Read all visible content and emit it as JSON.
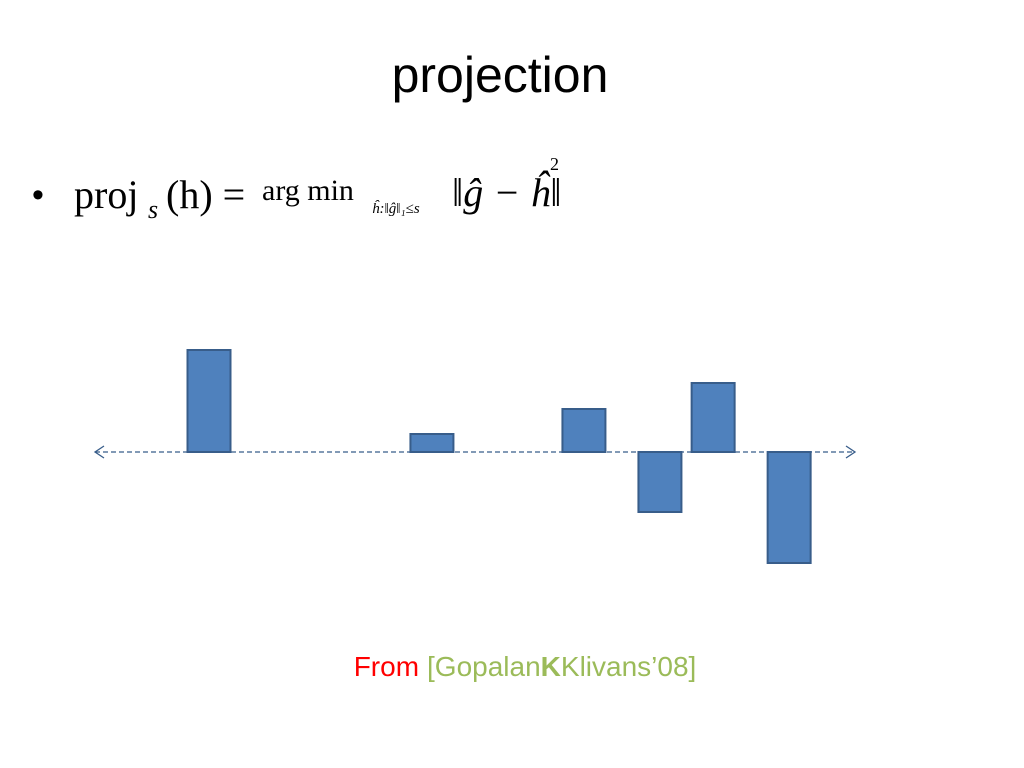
{
  "title": "projection",
  "bullet": {
    "symbol": "•",
    "proj": "proj",
    "sub": "s",
    "arg": "(h) =",
    "op": "arg min",
    "op_sub": "ĥ:‖ĝ‖₁≤s",
    "norm": "‖ĝ − ĥ‖",
    "power": "2"
  },
  "citation": {
    "from": "From",
    "open": "[Gopalan",
    "bold": "K",
    "close": "Klivans’08]"
  },
  "chart_data": {
    "type": "bar",
    "x": [
      4.5,
      13.3,
      19.3,
      22.3,
      24.4,
      27.4
    ],
    "values": [
      102,
      18,
      43,
      -60,
      69,
      -111
    ],
    "color": "#4f81bd",
    "xlim": [
      0,
      30
    ],
    "ylim": [
      -150,
      150
    ]
  }
}
